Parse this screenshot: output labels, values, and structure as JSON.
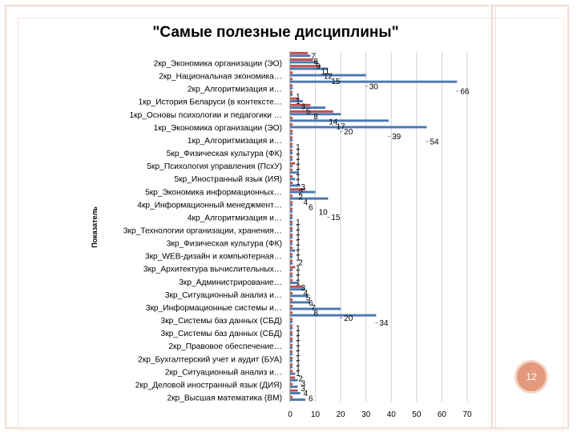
{
  "page_number": "12",
  "colors": {
    "series_blue": "#4a78b5",
    "series_red": "#c0504d",
    "frame": "#f2ddd3",
    "badge": "#e39a7c"
  },
  "chart_data": {
    "type": "bar",
    "orientation": "horizontal",
    "title": "\"Самые полезные дисциплины\"",
    "ylabel": "Показатель",
    "xlabel": "",
    "xlim": [
      0,
      70
    ],
    "xticks": [
      "0",
      "10",
      "20",
      "30",
      "40",
      "50",
      "60",
      "70"
    ],
    "grid": true,
    "labeled_categories": [
      "2кр_Экономика организации (ЭО)",
      "2кр_Национальная экономика…",
      "2кр_Алгоритмизация и…",
      "1кр_История Беларуси (в контексте…",
      "1кр_Основы психологии и педагогики …",
      "1кр_Экономика организации (ЭО)",
      "1кр_Алгоритмизация и…",
      "5кр_Физическая культура (ФК)",
      "5кр_Психология управления (ПсхУ)",
      "5кр_Иностранный язык (ИЯ)",
      "5кр_Экономика информационных…",
      "4кр_Информационный менеджмент…",
      "4кр_Алгоритмизация и…",
      "3кр_Технологии организации, хранения…",
      "3кр_Физическая культура (ФК)",
      "3кр_WEB-дизайн и компьютерная…",
      "3кр_Архитектура вычислительных…",
      "3кр_Администрирование…",
      "3кр_Ситуационный анализ и…",
      "3кр_Информационные системы и…",
      "3кр_Системы баз данных (СБД)",
      "3кр_Системы баз данных (СБД)",
      "2кр_Правовое обеспечение…",
      "2кр_Бухгалтерский учет и аудит (БУА)",
      "2кр_Ситуационный анализ и…",
      "2кр_Деловой иностранный язык (ДИЯ)",
      "2кр_Высшая математика (ВМ)"
    ],
    "series": [
      {
        "name": "blue",
        "values": [
          8,
          11,
          15,
          30,
          66,
          1,
          1,
          5,
          14,
          20,
          39,
          54,
          1,
          1,
          1,
          1,
          1,
          1,
          3,
          2,
          4,
          10,
          15,
          1,
          1,
          1,
          1,
          1,
          1,
          1,
          2,
          1,
          1,
          1,
          1,
          3,
          6,
          7,
          8,
          20,
          34,
          1,
          1,
          1,
          1,
          1,
          1,
          1,
          1,
          2,
          3,
          3,
          4,
          6
        ]
      },
      {
        "name": "red",
        "values": [
          7,
          9,
          12,
          1,
          1,
          1,
          1,
          3,
          8,
          17,
          1,
          1,
          1,
          1,
          1,
          1,
          1,
          2,
          1,
          1,
          1,
          6,
          1,
          1,
          1,
          1,
          1,
          1,
          1,
          1,
          1,
          1,
          1,
          2,
          1,
          1,
          5,
          1,
          1,
          1,
          1,
          1,
          1,
          1,
          1,
          1,
          1,
          1,
          1,
          1,
          2,
          1,
          3,
          1
        ]
      }
    ],
    "data_labels": [
      "7",
      "8",
      "9",
      "11",
      "12",
      "15",
      "30",
      "66",
      "1",
      "1",
      "3",
      "5",
      "8",
      "14",
      "17",
      "20",
      "39",
      "54",
      "1",
      "1",
      "1",
      "1",
      "1",
      "1",
      "1",
      "1",
      "3",
      "2",
      "2",
      "4",
      "6",
      "10",
      "15",
      "1",
      "1",
      "1",
      "1",
      "1",
      "1",
      "1",
      "1",
      "2",
      "1",
      "1",
      "1",
      "1",
      "3",
      "4",
      "5",
      "6",
      "7",
      "8",
      "20",
      "34",
      "1",
      "1",
      "1",
      "1",
      "1",
      "1",
      "1",
      "1",
      "1",
      "1",
      "2",
      "3",
      "3",
      "4",
      "6"
    ]
  }
}
